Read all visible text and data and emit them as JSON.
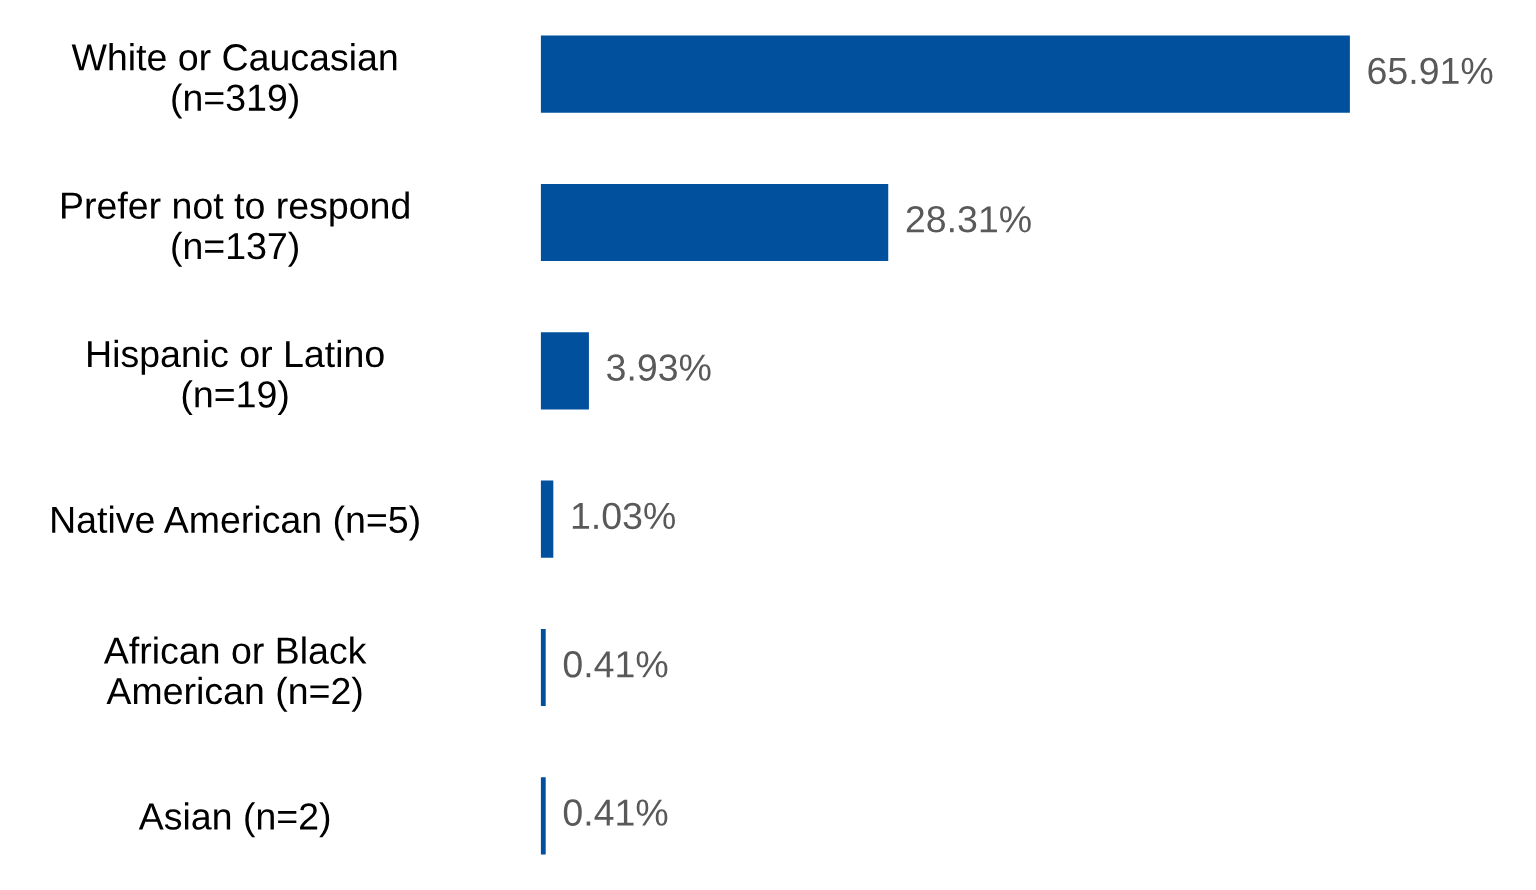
{
  "chart_data": {
    "type": "bar",
    "orientation": "horizontal",
    "categories": [
      "White or Caucasian\n(n=319)",
      "Prefer not to respond\n(n=137)",
      "Hispanic or Latino\n(n=19)",
      "Native American (n=5)",
      "African or Black\nAmerican (n=2)",
      "Asian (n=2)"
    ],
    "values": [
      65.91,
      28.31,
      3.93,
      1.03,
      0.41,
      0.41
    ],
    "value_labels": [
      "65.91%",
      "28.31%",
      "3.93%",
      "1.03%",
      "0.41%",
      "0.41%"
    ],
    "color": "#00509e",
    "grid": false,
    "legend": false
  }
}
